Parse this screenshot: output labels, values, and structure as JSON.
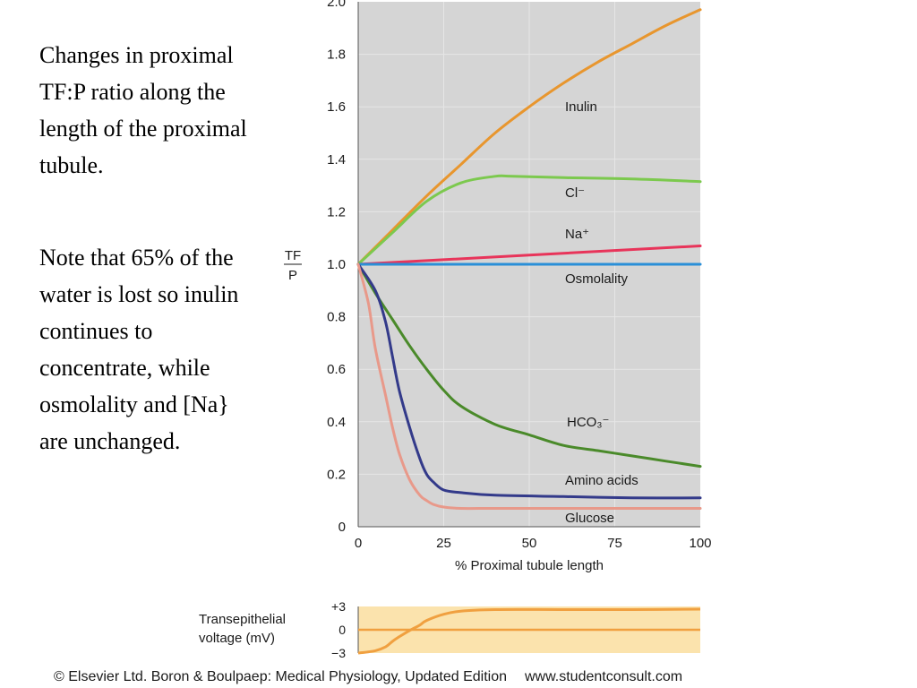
{
  "caption": {
    "paragraph1": "Changes in proximal TF:P ratio along the length of the proximal tubule.",
    "paragraph2": "Note that 65% of the water is lost so inulin continues to concentrate, while osmolality and [Na} are unchanged."
  },
  "footer": {
    "credit": "© Elsevier Ltd. Boron & Boulpaep: Medical Physiology, Updated Edition",
    "url": "www.studentconsult.com"
  },
  "chart_data": [
    {
      "type": "line",
      "xlabel": "% Proximal tubule length",
      "ylabel_top": "TF",
      "ylabel_bottom": "P",
      "xlim": [
        0,
        100
      ],
      "ylim": [
        0,
        2.0
      ],
      "xticks": [
        0,
        25,
        50,
        75,
        100
      ],
      "yticks": [
        0,
        0.2,
        0.4,
        0.6,
        0.8,
        1.0,
        1.2,
        1.4,
        1.6,
        1.8,
        2.0
      ],
      "ytick_labels": [
        "0",
        "0.2",
        "0.4",
        "0.6",
        "0.8",
        "1.0",
        "1.2",
        "1.4",
        "1.6",
        "1.8",
        "2.0"
      ],
      "grid": true,
      "background": "#d5d5d5",
      "series": [
        {
          "name": "Inulin",
          "color": "#e8962e",
          "x": [
            0,
            10,
            20,
            30,
            40,
            50,
            60,
            70,
            80,
            90,
            100
          ],
          "y": [
            1.0,
            1.13,
            1.26,
            1.38,
            1.5,
            1.6,
            1.69,
            1.77,
            1.84,
            1.91,
            1.97
          ]
        },
        {
          "name": "Cl⁻",
          "color": "#7cc94e",
          "x": [
            0,
            10,
            20,
            30,
            40,
            45,
            60,
            80,
            100
          ],
          "y": [
            1.0,
            1.12,
            1.24,
            1.31,
            1.335,
            1.335,
            1.33,
            1.325,
            1.315
          ]
        },
        {
          "name": "Na⁺",
          "color": "#e8345a",
          "x": [
            0,
            100
          ],
          "y": [
            1.0,
            1.07
          ]
        },
        {
          "name": "Osmolality",
          "color": "#2a8fd8",
          "x": [
            0,
            100
          ],
          "y": [
            1.0,
            1.0
          ]
        },
        {
          "name": "HCO₃⁻",
          "color": "#4a8a2a",
          "x": [
            0,
            5,
            10,
            15,
            20,
            25,
            30,
            40,
            50,
            60,
            70,
            80,
            90,
            100
          ],
          "y": [
            1.0,
            0.89,
            0.79,
            0.69,
            0.6,
            0.52,
            0.46,
            0.39,
            0.35,
            0.31,
            0.29,
            0.27,
            0.25,
            0.23
          ]
        },
        {
          "name": "Amino acids",
          "color": "#333a8a",
          "x": [
            0,
            5,
            8,
            10,
            12,
            15,
            18,
            20,
            22,
            25,
            30,
            40,
            60,
            80,
            100
          ],
          "y": [
            1.0,
            0.9,
            0.78,
            0.65,
            0.52,
            0.38,
            0.26,
            0.2,
            0.17,
            0.14,
            0.13,
            0.12,
            0.115,
            0.11,
            0.11
          ]
        },
        {
          "name": "Glucose",
          "color": "#e8998a",
          "x": [
            0,
            3,
            5,
            8,
            10,
            12,
            15,
            18,
            20,
            22,
            25,
            30,
            40,
            60,
            80,
            100
          ],
          "y": [
            1.0,
            0.85,
            0.68,
            0.5,
            0.38,
            0.28,
            0.18,
            0.12,
            0.1,
            0.085,
            0.075,
            0.07,
            0.07,
            0.07,
            0.07,
            0.07
          ]
        }
      ]
    },
    {
      "type": "line",
      "ylabel_line1": "Transepithelial",
      "ylabel_line2": "voltage (mV)",
      "xlim": [
        0,
        100
      ],
      "ylim": [
        -3,
        3
      ],
      "yticks": [
        3,
        0,
        -3
      ],
      "ytick_labels": [
        "+3",
        "0",
        "−3"
      ],
      "background": "#fbe3ad",
      "series": [
        {
          "color": "#f0a040",
          "x": [
            0,
            5,
            8,
            10,
            12,
            15,
            18,
            20,
            25,
            30,
            40,
            60,
            80,
            100
          ],
          "y": [
            -3,
            -2.7,
            -2.2,
            -1.5,
            -0.9,
            -0.1,
            0.6,
            1.2,
            2.0,
            2.4,
            2.6,
            2.6,
            2.6,
            2.65
          ]
        }
      ],
      "reference_line": {
        "y": 0,
        "color": "#f0a040"
      }
    }
  ]
}
